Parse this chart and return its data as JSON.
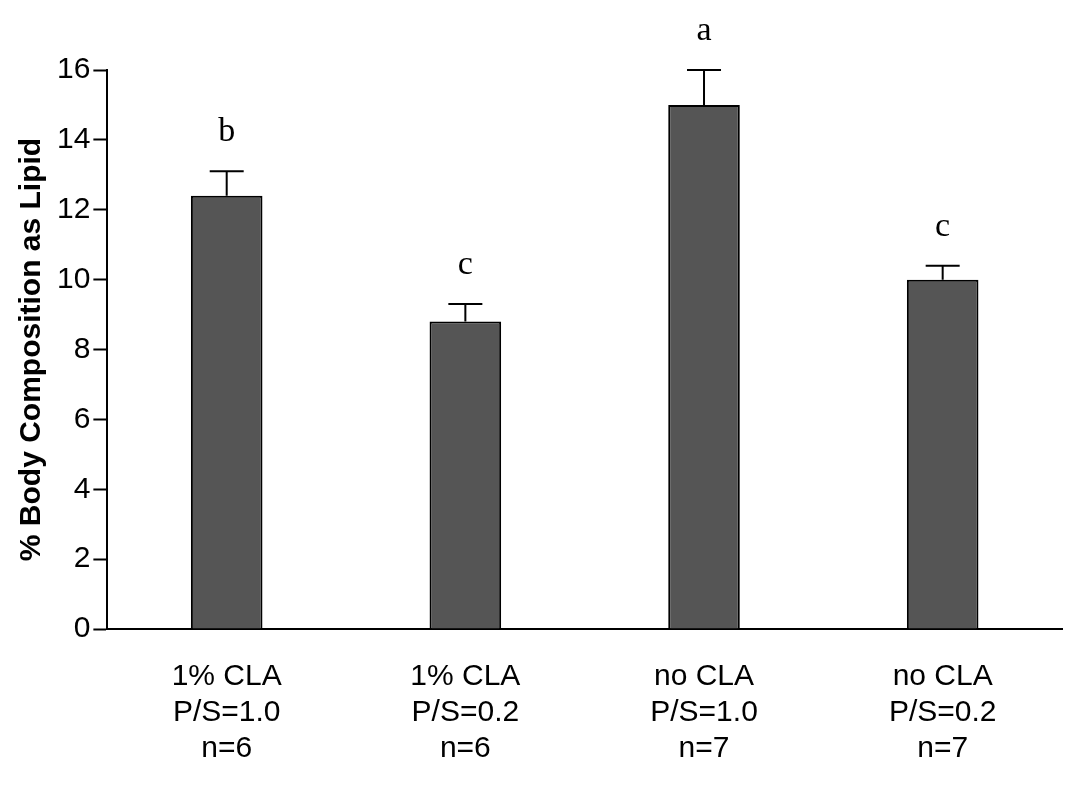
{
  "chart_data": {
    "type": "bar",
    "ylabel": "% Body Composition as Lipid",
    "categories": [
      "1% CLA\nP/S=1.0\nn=6",
      "1% CLA\nP/S=0.2\nn=6",
      "no CLA\nP/S=1.0\nn=7",
      "no CLA\nP/S=0.2\nn=7"
    ],
    "values": [
      12.4,
      8.8,
      15.0,
      10.0
    ],
    "errors": [
      [
        12.4,
        13.1
      ],
      [
        8.8,
        9.3
      ],
      [
        15.0,
        16.0
      ],
      [
        10.0,
        10.4
      ]
    ],
    "color": "#555555",
    "ylim": [
      0,
      16
    ],
    "yticks": [
      0,
      2,
      4,
      6,
      8,
      10,
      12,
      14,
      16
    ],
    "grid": false,
    "legend": false,
    "annotations": [
      {
        "text": "b",
        "x": "1% CLA\nP/S=1.0\nn=6",
        "y": 13.1
      },
      {
        "text": "c",
        "x": "1% CLA\nP/S=0.2\nn=6",
        "y": 9.3
      },
      {
        "text": "a",
        "x": "no CLA\nP/S=1.0\nn=7",
        "y": 16.0
      },
      {
        "text": "c",
        "x": "no CLA\nP/S=0.2\nn=7",
        "y": 10.4
      }
    ]
  }
}
